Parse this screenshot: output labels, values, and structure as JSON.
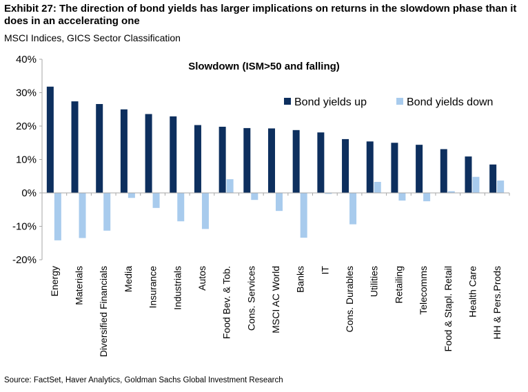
{
  "header": {
    "title": "Exhibit 27: The direction of bond yields has larger implications on returns in the slowdown phase than it does in an accelerating one",
    "subtitle": "MSCI Indices, GICS Sector Classification"
  },
  "footer": {
    "source": "Source: FactSet, Haver Analytics, Goldman Sachs Global Investment Research"
  },
  "colors": {
    "up": "#0d2f5e",
    "down": "#a8cbed",
    "axis": "#a6a6a6"
  },
  "chart_data": {
    "type": "bar",
    "title": "Slowdown (ISM>50 and falling)",
    "xlabel": "",
    "ylabel": "",
    "ylim": [
      -20,
      40
    ],
    "yticks": [
      -20,
      -10,
      0,
      10,
      20,
      30,
      40
    ],
    "ytick_labels": [
      "-20%",
      "-10%",
      "0%",
      "10%",
      "20%",
      "30%",
      "40%"
    ],
    "grid": false,
    "legend_position": "top-right",
    "categories": [
      "Energy",
      "Materials",
      "Diversified Financials",
      "Media",
      "Insurance",
      "Industrials",
      "Autos",
      "Food Bev. & Tob.",
      "Cons. Services",
      "MSCI AC World",
      "Banks",
      "IT",
      "Cons. Durables",
      "Utilities",
      "Retailing",
      "Telecomms",
      "Food & Stapl. Retail",
      "Health Care",
      "HH & Pers.Prods"
    ],
    "series": [
      {
        "name": "Bond yields up",
        "values": [
          31.8,
          27.4,
          26.6,
          25.0,
          23.6,
          22.9,
          20.3,
          19.8,
          19.4,
          19.3,
          18.8,
          18.1,
          16.1,
          15.4,
          15.0,
          14.4,
          13.1,
          10.9,
          8.5
        ]
      },
      {
        "name": "Bond yields down",
        "values": [
          -14.2,
          -13.5,
          -11.3,
          -1.5,
          -4.5,
          -8.5,
          -10.8,
          4.1,
          -2.1,
          -5.4,
          -13.4,
          -0.3,
          -9.4,
          3.3,
          -2.3,
          -2.5,
          0.5,
          4.8,
          3.7
        ]
      }
    ]
  }
}
